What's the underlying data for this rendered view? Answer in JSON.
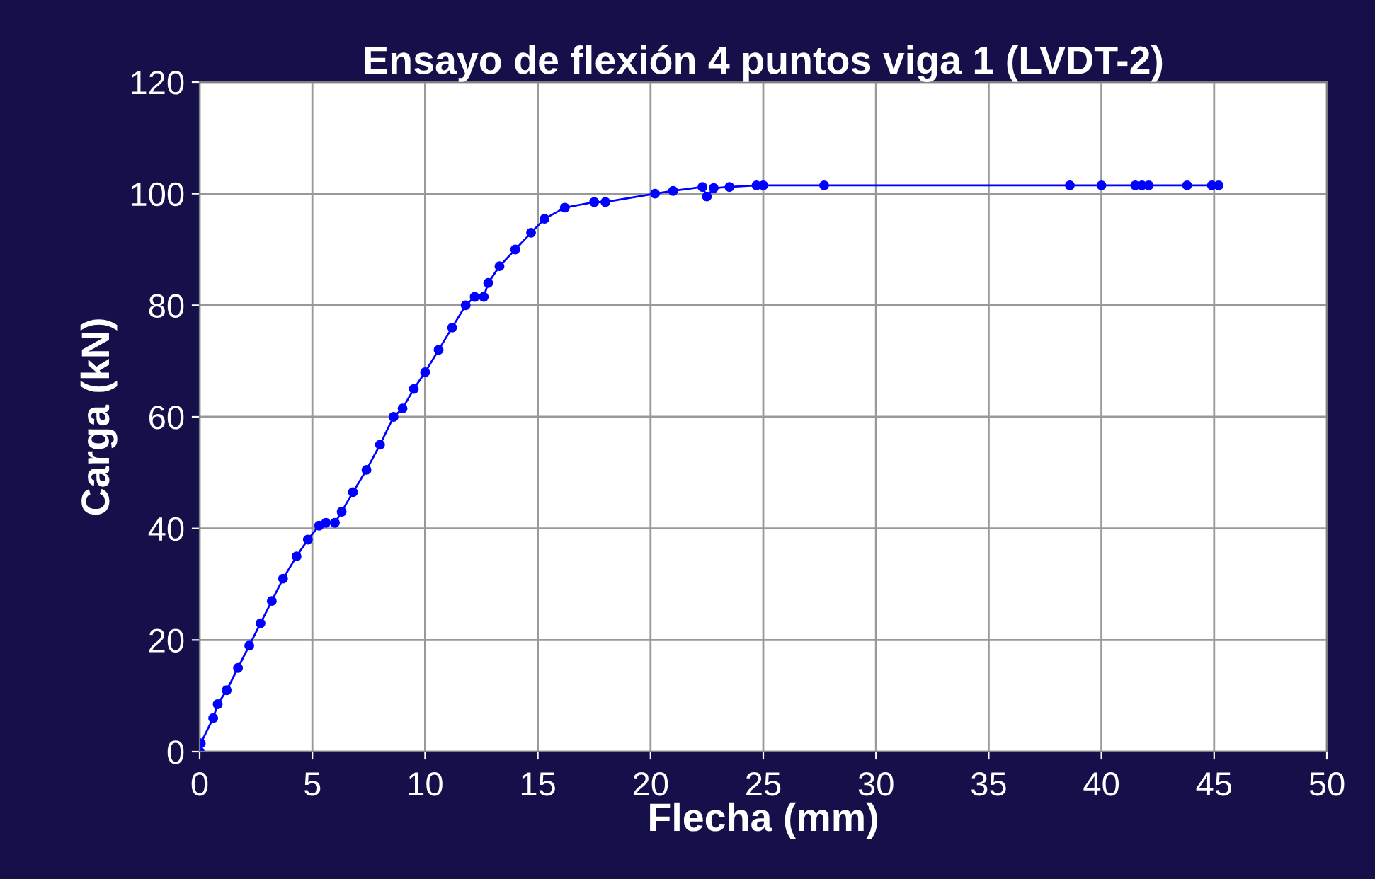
{
  "chart_data": {
    "type": "line",
    "title": "Ensayo de flexión 4 puntos viga 1 (LVDT-2)",
    "xlabel": "Flecha (mm)",
    "ylabel": "Carga (kN)",
    "series": [
      {
        "color": "#0000ff",
        "x": [
          0,
          0.05,
          0.6,
          0.8,
          1.2,
          1.7,
          2.2,
          2.7,
          3.2,
          3.7,
          4.3,
          4.8,
          5.3,
          5.6,
          6.0,
          6.3,
          6.8,
          7.4,
          8.0,
          8.6,
          9.0,
          9.5,
          10.0,
          10.6,
          11.2,
          11.8,
          12.2,
          12.6,
          12.8,
          13.3,
          14.0,
          14.7,
          15.3,
          16.2,
          17.5,
          18.0,
          20.2,
          21.0,
          22.3,
          22.5,
          22.8,
          23.5,
          24.7,
          25.0,
          27.7,
          38.6,
          40.0,
          41.5,
          41.8,
          42.1,
          43.8,
          44.9,
          45.2
        ],
        "values": [
          0,
          1.5,
          6,
          8.5,
          11,
          15,
          19,
          23,
          27,
          31,
          35,
          38,
          40.5,
          41,
          41,
          43,
          46.5,
          50.5,
          55,
          60,
          61.5,
          65,
          68,
          72,
          76,
          80,
          81.5,
          81.5,
          84,
          87,
          90,
          93,
          95.5,
          97.5,
          98.5,
          98.5,
          100,
          100.5,
          101.2,
          99.5,
          101,
          101.2,
          101.5,
          101.5,
          101.5,
          101.5,
          101.5,
          101.5,
          101.5,
          101.5,
          101.5,
          101.5,
          101.5
        ]
      }
    ],
    "xlim": [
      0,
      50
    ],
    "xticks": [
      0,
      5,
      10,
      15,
      20,
      25,
      30,
      35,
      40,
      45,
      50
    ],
    "ylim": [
      0,
      120
    ],
    "yticks": [
      0,
      20,
      40,
      60,
      80,
      100,
      120
    ],
    "grid": true,
    "marker": "circle",
    "line_style": "solid"
  }
}
